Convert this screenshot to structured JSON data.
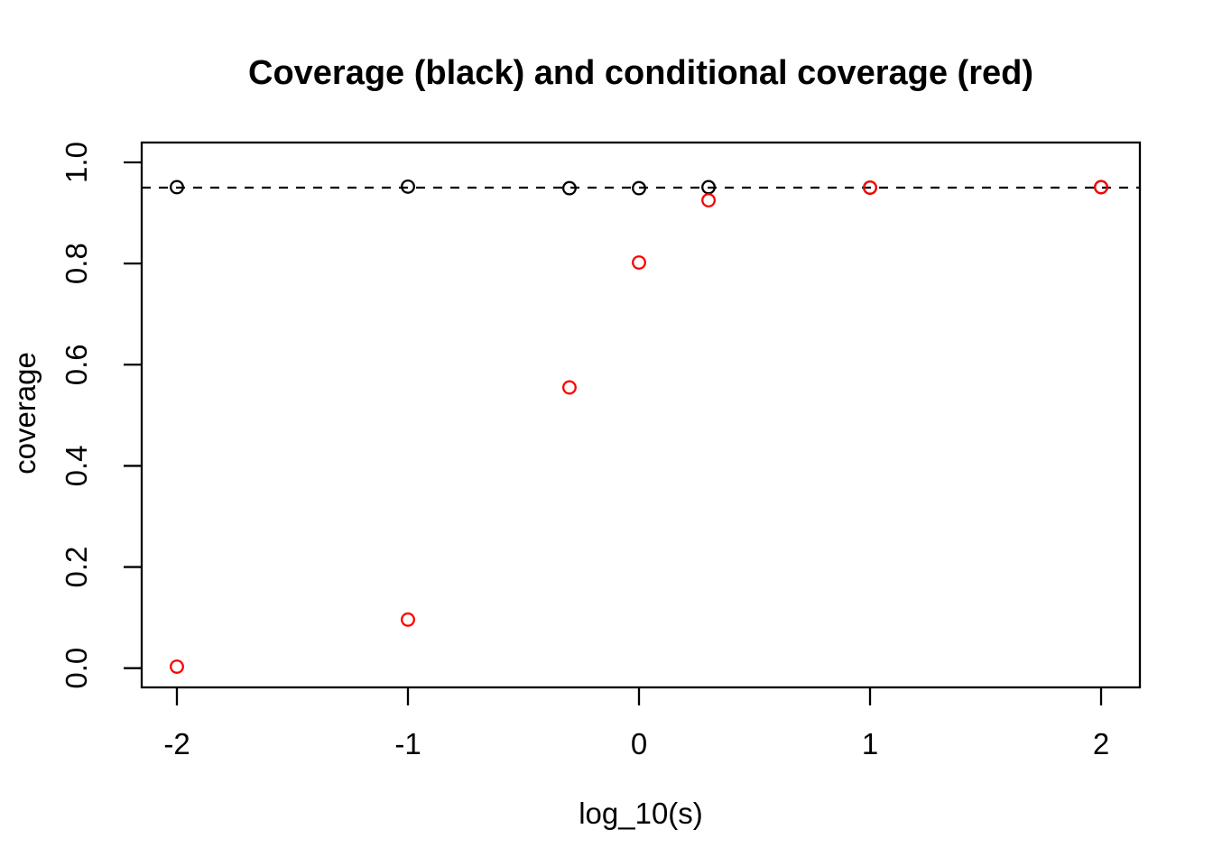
{
  "chart_data": {
    "type": "scatter",
    "title": "Coverage (black) and conditional coverage (red)",
    "xlabel": "log_10(s)",
    "ylabel": "coverage",
    "x": [
      -2,
      -1,
      -0.301,
      0,
      0.301,
      1,
      2
    ],
    "series": [
      {
        "name": "coverage",
        "color": "#000000",
        "marker": "open-circle",
        "values": [
          0.951,
          0.952,
          0.949,
          0.949,
          0.951,
          0.95,
          0.951
        ]
      },
      {
        "name": "conditional coverage",
        "color": "#ff0000",
        "marker": "open-circle",
        "values": [
          0.003,
          0.096,
          0.555,
          0.802,
          0.925,
          0.95,
          0.951
        ]
      }
    ],
    "reference_line": {
      "y": 0.95,
      "style": "dashed",
      "color": "#000000"
    },
    "x_ticks": [
      -2,
      -1,
      0,
      1,
      2
    ],
    "x_tick_labels": [
      "-2",
      "-1",
      "0",
      "1",
      "2"
    ],
    "y_ticks": [
      0.0,
      0.2,
      0.4,
      0.6,
      0.8,
      1.0
    ],
    "y_tick_labels": [
      "0.0",
      "0.2",
      "0.4",
      "0.6",
      "0.8",
      "1.0"
    ],
    "xlim": [
      -2.16,
      2.16
    ],
    "ylim": [
      -0.04,
      1.04
    ],
    "grid": false,
    "legend": "none",
    "background": "#ffffff"
  }
}
